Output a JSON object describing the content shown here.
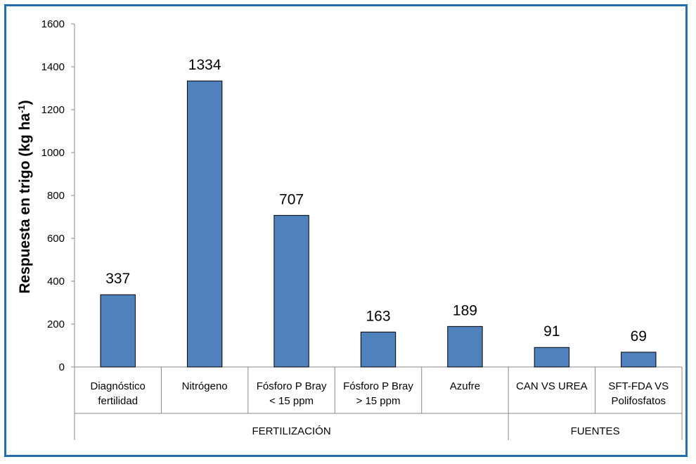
{
  "chart_data": {
    "type": "bar",
    "ylabel": "Respuesta en trigo (kg ha",
    "ylabel_sup": "-1",
    "ylabel_close": ")",
    "ylim": [
      0,
      1600
    ],
    "yticks": [
      0,
      200,
      400,
      600,
      800,
      1000,
      1200,
      1400,
      1600
    ],
    "grid": false,
    "legend": "none",
    "bar_color": "#4f81bd",
    "bar_edge": "#000000",
    "frame_color": "#1f6fb2",
    "categories": [
      [
        "Diagnóstico",
        "fertilidad"
      ],
      [
        "Nitrógeno"
      ],
      [
        "Fósforo P Bray",
        "< 15 ppm"
      ],
      [
        "Fósforo P Bray",
        "> 15 ppm"
      ],
      [
        "Azufre"
      ],
      [
        "CAN VS UREA"
      ],
      [
        "SFT-FDA VS",
        "Polifosfatos"
      ]
    ],
    "values": [
      337,
      1334,
      707,
      163,
      189,
      91,
      69
    ],
    "groups": [
      {
        "label": "FERTILIZACIÓN",
        "start": 0,
        "end": 4
      },
      {
        "label": "FUENTES",
        "start": 5,
        "end": 6
      }
    ]
  }
}
